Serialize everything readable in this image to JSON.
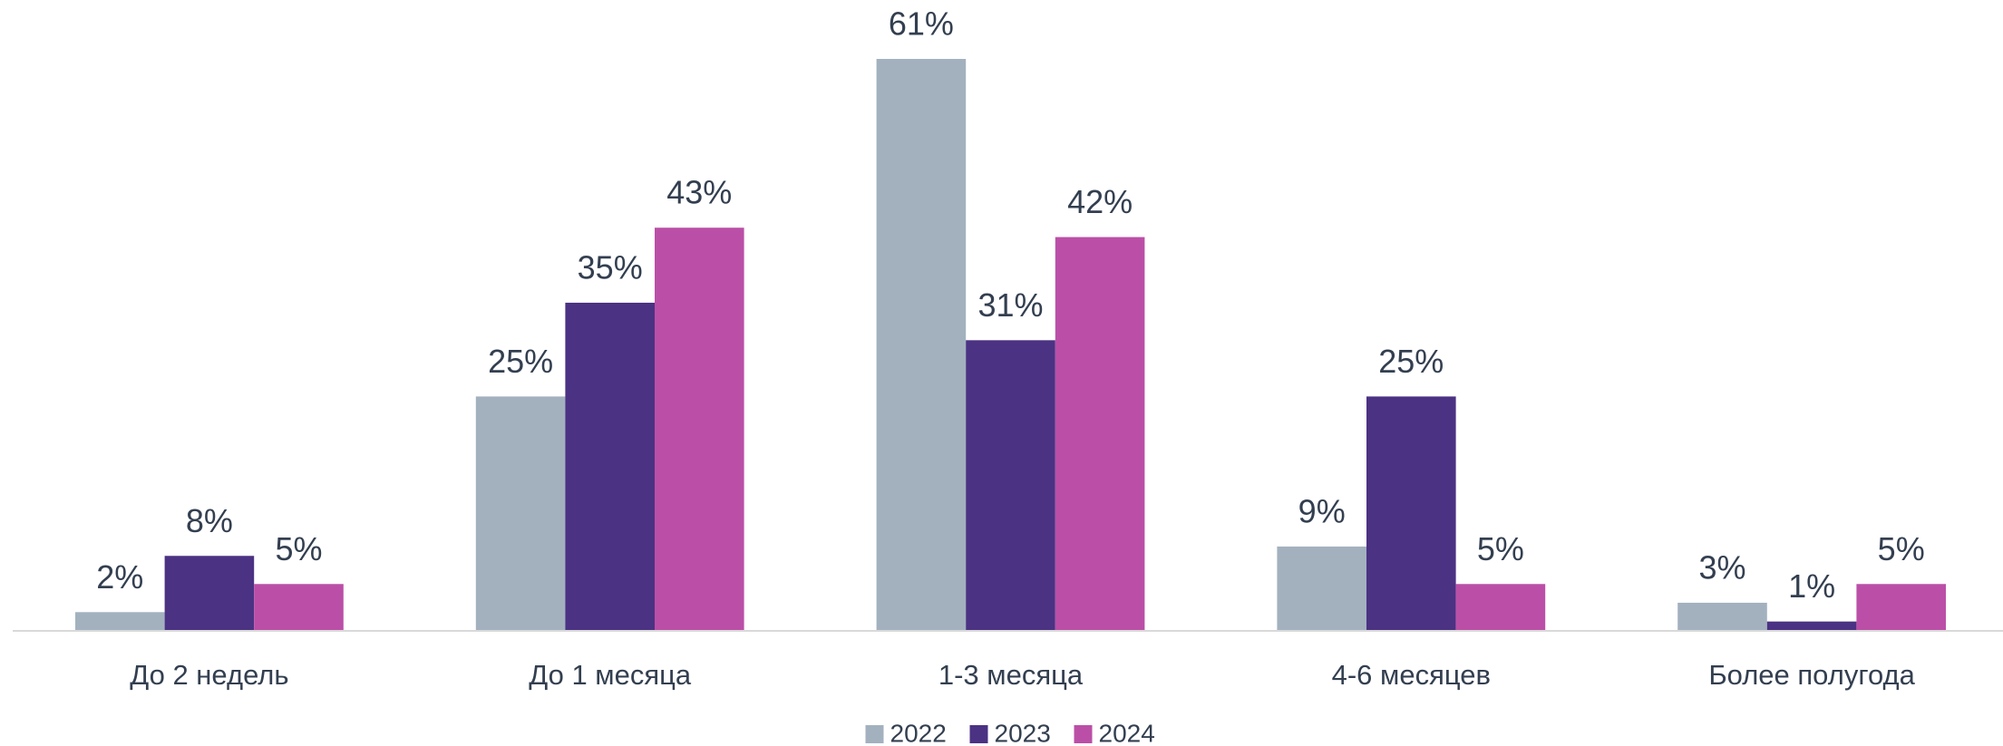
{
  "chart_data": {
    "type": "bar",
    "categories": [
      "До 2 недель",
      "До 1 месяца",
      "1-3 месяца",
      "4-6 месяцев",
      "Более полугода"
    ],
    "series": [
      {
        "name": "2022",
        "color": "#a3b1bf",
        "values": [
          2,
          25,
          61,
          9,
          3
        ],
        "value_labels": [
          "2%",
          "25%",
          "61%",
          "9%",
          "3%"
        ]
      },
      {
        "name": "2023",
        "color": "#4b3283",
        "values": [
          8,
          35,
          31,
          25,
          1
        ],
        "value_labels": [
          "8%",
          "35%",
          "31%",
          "25%",
          "1%"
        ]
      },
      {
        "name": "2024",
        "color": "#bb4fa7",
        "values": [
          5,
          43,
          42,
          5,
          5
        ],
        "value_labels": [
          "5%",
          "43%",
          "42%",
          "5%",
          "5%"
        ]
      }
    ],
    "legend": "bottom"
  }
}
